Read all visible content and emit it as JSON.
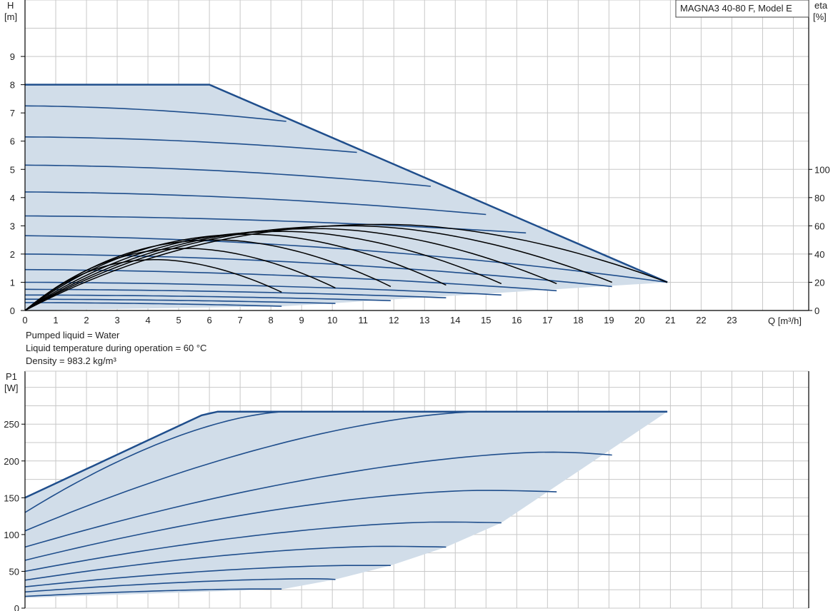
{
  "info": {
    "liquid": "Pumped liquid = Water",
    "temperature": "Liquid temperature during operation = 60 °C",
    "density": "Density = 983.2 kg/m³"
  },
  "colors": {
    "curve": "#1f4e8c",
    "fill": "#d1dde9",
    "eta": "#000000",
    "grid": "#c8c8c8"
  },
  "chart_data": [
    {
      "type": "line",
      "title": "MAGNA3 40-80 F, Model E",
      "xlabel": "Q [m³/h]",
      "ylabel": "H\n[m]",
      "y2label": "eta\n[%]",
      "xlim": [
        0,
        25.5
      ],
      "ylim": [
        0,
        11
      ],
      "y2lim": [
        0,
        220
      ],
      "xticks": [
        0,
        1,
        2,
        3,
        4,
        5,
        6,
        7,
        8,
        9,
        10,
        11,
        12,
        13,
        14,
        15,
        16,
        17,
        18,
        19,
        20,
        21,
        22,
        23
      ],
      "yticks": [
        0,
        1,
        2,
        3,
        4,
        5,
        6,
        7,
        8,
        9
      ],
      "y2ticks": [
        0,
        20,
        40,
        60,
        80,
        100
      ],
      "grid": true,
      "envelope": [
        [
          0,
          0
        ],
        [
          0,
          8
        ],
        [
          6,
          8
        ],
        [
          20.9,
          1
        ],
        [
          8.4,
          0.15
        ],
        [
          0,
          0
        ]
      ],
      "head_curves": [
        {
          "h0": 7.25,
          "q_end": 8.5,
          "h_end": 6.7
        },
        {
          "h0": 6.15,
          "q_end": 10.8,
          "h_end": 5.6
        },
        {
          "h0": 5.15,
          "q_end": 13.2,
          "h_end": 4.4
        },
        {
          "h0": 4.2,
          "q_end": 15.0,
          "h_end": 3.4
        },
        {
          "h0": 3.35,
          "q_end": 16.3,
          "h_end": 2.75
        },
        {
          "h0": 2.65,
          "q_end": 20.9,
          "h_end": 1.0
        },
        {
          "h0": 2.0,
          "q_end": 19.1,
          "h_end": 0.85
        },
        {
          "h0": 1.45,
          "q_end": 17.3,
          "h_end": 0.7
        },
        {
          "h0": 1.0,
          "q_end": 15.5,
          "h_end": 0.55
        },
        {
          "h0": 0.75,
          "q_end": 13.7,
          "h_end": 0.45
        },
        {
          "h0": 0.55,
          "q_end": 11.9,
          "h_end": 0.35
        },
        {
          "h0": 0.4,
          "q_end": 10.1,
          "h_end": 0.25
        },
        {
          "h0": 0.28,
          "q_end": 8.35,
          "h_end": 0.15
        }
      ],
      "eta_curves": [
        {
          "q_peak": 4.3,
          "eta_peak": 36,
          "q_end": 8.35,
          "eta_end": 13
        },
        {
          "q_peak": 5.3,
          "eta_peak": 44,
          "q_end": 10.1,
          "eta_end": 16
        },
        {
          "q_peak": 6.3,
          "eta_peak": 50,
          "q_end": 11.9,
          "eta_end": 17
        },
        {
          "q_peak": 7.4,
          "eta_peak": 54,
          "q_end": 13.7,
          "eta_end": 18
        },
        {
          "q_peak": 8.5,
          "eta_peak": 56,
          "q_end": 15.5,
          "eta_end": 19
        },
        {
          "q_peak": 9.6,
          "eta_peak": 58,
          "q_end": 17.3,
          "eta_end": 19
        },
        {
          "q_peak": 10.7,
          "eta_peak": 60,
          "q_end": 19.1,
          "eta_end": 20
        },
        {
          "q_peak": 11.8,
          "eta_peak": 61,
          "q_end": 20.9,
          "eta_end": 20
        }
      ]
    },
    {
      "type": "line",
      "ylabel": "P1\n[W]",
      "xlim": [
        0,
        25.5
      ],
      "ylim": [
        0,
        322
      ],
      "yticks": [
        0,
        50,
        100,
        150,
        200,
        250
      ],
      "grid": true,
      "envelope": [
        [
          0,
          150
        ],
        [
          6,
          267
        ],
        [
          20.9,
          267
        ],
        [
          15.5,
          116
        ],
        [
          13.7,
          83
        ],
        [
          11.9,
          58
        ],
        [
          10.1,
          39
        ],
        [
          8.4,
          26
        ],
        [
          0,
          14
        ]
      ],
      "power_curves": [
        {
          "q0": 0,
          "p0": 150,
          "q_peak": 6,
          "p_peak": 267,
          "q_end": 20.9,
          "p_end": 267
        },
        {
          "q0": 0,
          "p0": 130,
          "q_peak": 8.5,
          "p_peak": 267,
          "q_end": 8.5,
          "p_end": 267
        },
        {
          "q0": 0,
          "p0": 105,
          "q_peak": 14.8,
          "p_peak": 267,
          "q_end": 14.8,
          "p_end": 267
        },
        {
          "q0": 0,
          "p0": 83,
          "q_peak": 17.0,
          "p_peak": 212,
          "q_end": 19.1,
          "p_end": 208
        },
        {
          "q0": 0,
          "p0": 65,
          "q_peak": 14.8,
          "p_peak": 160,
          "q_end": 17.3,
          "p_end": 158
        },
        {
          "q0": 0,
          "p0": 50,
          "q_peak": 13.5,
          "p_peak": 117,
          "q_end": 15.5,
          "p_end": 116
        },
        {
          "q0": 0,
          "p0": 38,
          "q_peak": 11.6,
          "p_peak": 84,
          "q_end": 13.7,
          "p_end": 83
        },
        {
          "q0": 0,
          "p0": 29,
          "q_peak": 10.6,
          "p_peak": 58,
          "q_end": 11.9,
          "p_end": 58
        },
        {
          "q0": 0,
          "p0": 22,
          "q_peak": 9.3,
          "p_peak": 40,
          "q_end": 10.1,
          "p_end": 39
        },
        {
          "q0": 0,
          "p0": 16,
          "q_peak": 7.6,
          "p_peak": 26,
          "q_end": 8.35,
          "p_end": 26
        }
      ]
    }
  ]
}
